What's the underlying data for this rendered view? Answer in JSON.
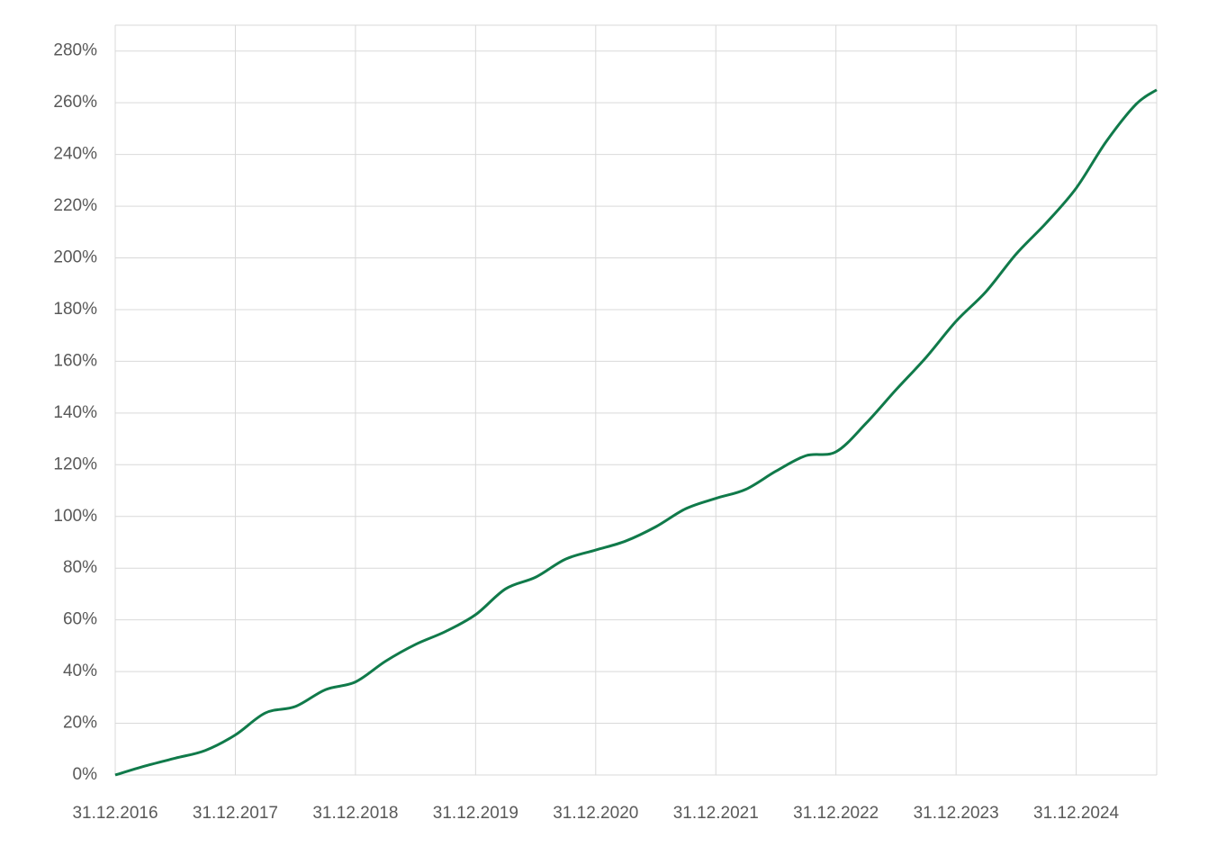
{
  "chart_data": {
    "type": "line",
    "x": [
      2016,
      2016.25,
      2016.5,
      2016.75,
      2017,
      2017.25,
      2017.5,
      2017.75,
      2018,
      2018.25,
      2018.5,
      2018.75,
      2019,
      2019.25,
      2019.5,
      2019.75,
      2020,
      2020.25,
      2020.5,
      2020.75,
      2021,
      2021.25,
      2021.5,
      2021.75,
      2022,
      2022.25,
      2022.5,
      2022.75,
      2023,
      2023.25,
      2023.5,
      2023.75,
      2024,
      2024.25,
      2024.5,
      2024.67
    ],
    "series": [
      {
        "color": "#107a4a",
        "values": [
          0,
          3.5,
          6.5,
          9.5,
          15.5,
          24,
          26.5,
          33,
          36,
          44,
          50.5,
          55.5,
          62,
          72,
          76.5,
          83.5,
          87,
          90.5,
          96,
          103,
          107,
          110.5,
          117.5,
          123.5,
          125,
          136,
          149,
          161.5,
          175.5,
          187,
          201.5,
          213.5,
          227,
          245,
          259.5,
          265
        ]
      }
    ],
    "xlim": [
      2016,
      2024.67
    ],
    "xticks": [
      {
        "value": 2016,
        "label": "31.12.2016"
      },
      {
        "value": 2017,
        "label": "31.12.2017"
      },
      {
        "value": 2018,
        "label": "31.12.2018"
      },
      {
        "value": 2019,
        "label": "31.12.2019"
      },
      {
        "value": 2020,
        "label": "31.12.2020"
      },
      {
        "value": 2021,
        "label": "31.12.2021"
      },
      {
        "value": 2022,
        "label": "31.12.2022"
      },
      {
        "value": 2023,
        "label": "31.12.2023"
      },
      {
        "value": 2024,
        "label": "31.12.2024"
      }
    ],
    "ylim": [
      0,
      290
    ],
    "yticks": [
      {
        "value": 0,
        "label": "0%"
      },
      {
        "value": 20,
        "label": "20%"
      },
      {
        "value": 40,
        "label": "40%"
      },
      {
        "value": 60,
        "label": "60%"
      },
      {
        "value": 80,
        "label": "80%"
      },
      {
        "value": 100,
        "label": "100%"
      },
      {
        "value": 120,
        "label": "120%"
      },
      {
        "value": 140,
        "label": "140%"
      },
      {
        "value": 160,
        "label": "160%"
      },
      {
        "value": 180,
        "label": "180%"
      },
      {
        "value": 200,
        "label": "200%"
      },
      {
        "value": 220,
        "label": "220%"
      },
      {
        "value": 240,
        "label": "240%"
      },
      {
        "value": 260,
        "label": "260%"
      },
      {
        "value": 280,
        "label": "280%"
      }
    ],
    "grid": true
  }
}
